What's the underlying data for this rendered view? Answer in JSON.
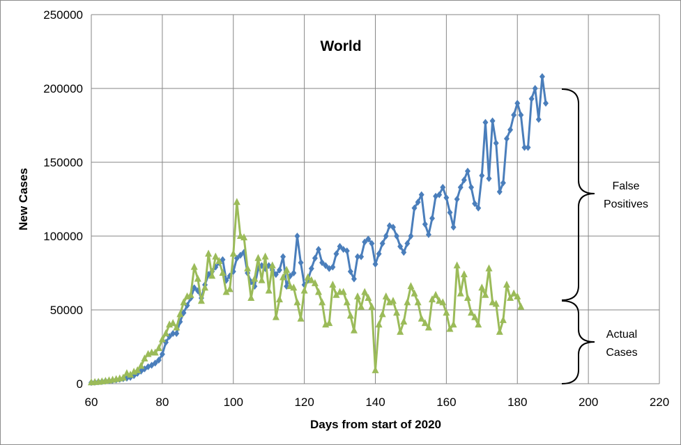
{
  "chart_data": {
    "type": "line",
    "title": "World",
    "xlabel": "Days from start of 2020",
    "ylabel": "New Cases",
    "xlim": [
      60,
      220
    ],
    "ylim": [
      0,
      250000
    ],
    "x_ticks": [
      "60",
      "80",
      "100",
      "120",
      "140",
      "160",
      "180",
      "200",
      "220"
    ],
    "y_ticks": [
      "0",
      "50000",
      "100000",
      "150000",
      "200000",
      "250000"
    ],
    "grid": true,
    "colors": {
      "reported": "#4a7ebb",
      "actual": "#9bbb59"
    },
    "series": [
      {
        "key": "reported",
        "marker": "diamond",
        "x": [
          60,
          61,
          62,
          63,
          64,
          65,
          66,
          67,
          68,
          69,
          70,
          71,
          72,
          73,
          74,
          75,
          76,
          77,
          78,
          79,
          80,
          81,
          82,
          83,
          84,
          85,
          86,
          87,
          88,
          89,
          90,
          91,
          92,
          93,
          94,
          95,
          96,
          97,
          98,
          99,
          100,
          101,
          102,
          103,
          104,
          105,
          106,
          107,
          108,
          109,
          110,
          111,
          112,
          113,
          114,
          115,
          116,
          117,
          118,
          119,
          120,
          121,
          122,
          123,
          124,
          125,
          126,
          127,
          128,
          129,
          130,
          131,
          132,
          133,
          134,
          135,
          136,
          137,
          138,
          139,
          140,
          141,
          142,
          143,
          144,
          145,
          146,
          147,
          148,
          149,
          150,
          151,
          152,
          153,
          154,
          155,
          156,
          157,
          158,
          159,
          160,
          161,
          162,
          163,
          164,
          165,
          166,
          167,
          168,
          169,
          170,
          171,
          172,
          173,
          174,
          175,
          176,
          177,
          178,
          179,
          180,
          181,
          182,
          183,
          184,
          185,
          186,
          187,
          188
        ],
        "y": [
          800,
          1000,
          1300,
          1500,
          1800,
          2000,
          2300,
          2600,
          3000,
          3400,
          3800,
          4300,
          5500,
          7000,
          8500,
          10000,
          11500,
          12500,
          14000,
          16000,
          20000,
          28000,
          32000,
          34000,
          34000,
          42000,
          48000,
          53000,
          58000,
          65000,
          63000,
          58000,
          67000,
          74000,
          76000,
          79000,
          82000,
          84000,
          70000,
          73000,
          76000,
          85000,
          87000,
          89000,
          75000,
          69000,
          66000,
          78000,
          80000,
          78000,
          80000,
          77000,
          74000,
          77000,
          86000,
          66000,
          73000,
          75000,
          100000,
          82000,
          67000,
          70000,
          78000,
          85000,
          91000,
          82000,
          80000,
          78000,
          79000,
          88000,
          93000,
          91000,
          90000,
          76000,
          71000,
          86000,
          86000,
          96000,
          98000,
          95000,
          81000,
          88000,
          95000,
          100000,
          107000,
          106000,
          100000,
          93000,
          89000,
          95000,
          100000,
          119000,
          123000,
          128000,
          108000,
          101000,
          112000,
          127000,
          128000,
          133000,
          126000,
          116000,
          106000,
          125000,
          133000,
          138000,
          144000,
          133000,
          122000,
          119000,
          141000,
          177000,
          139000,
          178000,
          163000,
          130000,
          136000,
          166000,
          172000,
          182000,
          190000,
          182000,
          160000,
          160000,
          193000,
          200000,
          179000,
          208000,
          190000
        ]
      },
      {
        "key": "actual",
        "marker": "triangle",
        "x": [
          60,
          61,
          62,
          63,
          64,
          65,
          66,
          67,
          68,
          69,
          70,
          71,
          72,
          73,
          74,
          75,
          76,
          77,
          78,
          79,
          80,
          81,
          82,
          83,
          84,
          85,
          86,
          87,
          88,
          89,
          90,
          91,
          92,
          93,
          94,
          95,
          96,
          97,
          98,
          99,
          100,
          101,
          102,
          103,
          104,
          105,
          106,
          107,
          108,
          109,
          110,
          111,
          112,
          113,
          114,
          115,
          116,
          117,
          118,
          119,
          120,
          121,
          122,
          123,
          124,
          125,
          126,
          127,
          128,
          129,
          130,
          131,
          132,
          133,
          134,
          135,
          136,
          137,
          138,
          139,
          140,
          141,
          142,
          143,
          144,
          145,
          146,
          147,
          148,
          149,
          150,
          151,
          152,
          153,
          154,
          155,
          156,
          157,
          158,
          159,
          160,
          161,
          162,
          163,
          164,
          165,
          166,
          167,
          168,
          169,
          170,
          171,
          172,
          173,
          174,
          175,
          176,
          177,
          178,
          179,
          180,
          181
        ],
        "y": [
          800,
          1000,
          1200,
          1500,
          1800,
          2200,
          2600,
          3000,
          3500,
          4000,
          7000,
          6000,
          8000,
          9000,
          12000,
          17000,
          20000,
          21000,
          21000,
          24000,
          30000,
          34000,
          40000,
          41000,
          38000,
          47000,
          55000,
          59000,
          60000,
          79000,
          71000,
          56000,
          65000,
          88000,
          73000,
          86000,
          83000,
          75000,
          62000,
          64000,
          88000,
          123000,
          100000,
          99000,
          78000,
          58000,
          71000,
          85000,
          70000,
          86000,
          63000,
          80000,
          45000,
          57000,
          72000,
          77000,
          66000,
          65000,
          55000,
          44000,
          63000,
          72000,
          70000,
          68000,
          62000,
          55000,
          40000,
          41000,
          67000,
          60000,
          62000,
          62000,
          55000,
          46000,
          36000,
          59000,
          52000,
          62000,
          58000,
          52000,
          9000,
          40000,
          47000,
          59000,
          55000,
          56000,
          48000,
          35000,
          42000,
          55000,
          66000,
          61000,
          55000,
          44000,
          41000,
          38000,
          57000,
          60000,
          56000,
          55000,
          48000,
          37000,
          40000,
          80000,
          61000,
          74000,
          58000,
          48000,
          45000,
          40000,
          65000,
          60000,
          78000,
          55000,
          54000,
          35000,
          43000,
          67000,
          58000,
          61000,
          59000,
          52000
        ]
      }
    ],
    "annotations": {
      "false_positives": "False\nPositives",
      "actual_cases": "Actual\nCases"
    }
  }
}
